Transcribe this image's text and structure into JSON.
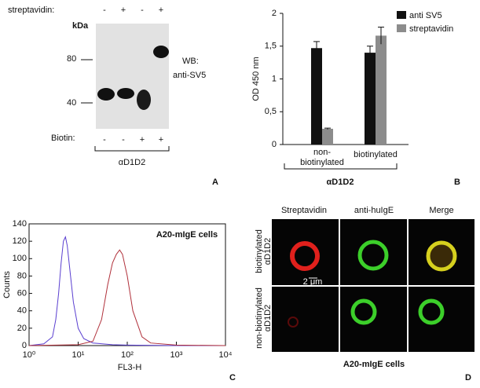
{
  "chart_data": [
    {
      "type": "bar",
      "panel_label": "B",
      "y_label": "OD 450 nm",
      "x_label": "αD1D2",
      "categories": [
        "non-biotinylated",
        "biotinylated"
      ],
      "series": [
        {
          "name": "anti SV5",
          "color": "#111111",
          "values": [
            1.47,
            1.4
          ],
          "errors": [
            0.1,
            0.1
          ]
        },
        {
          "name": "streptavidin",
          "color": "#8c8c8c",
          "values": [
            0.24,
            1.66
          ],
          "errors": [
            0.01,
            0.13
          ]
        }
      ],
      "ylim": [
        0,
        2
      ],
      "yticks": [
        0,
        {
          "value": 0.5,
          "label": "0,5"
        },
        1,
        {
          "value": 1.5,
          "label": "1,5"
        },
        2
      ]
    },
    {
      "type": "line",
      "panel_label": "C",
      "y_label": "Counts",
      "x_label": "FL3-H",
      "annotation": "A20-mIgE cells",
      "xlog": true,
      "xlim": [
        1,
        10000
      ],
      "ylim": [
        0,
        140
      ],
      "xticks": [
        {
          "value": 1,
          "label": "10⁰"
        },
        {
          "value": 10,
          "label": "10¹"
        },
        {
          "value": 100,
          "label": "10²"
        },
        {
          "value": 1000,
          "label": "10³"
        },
        {
          "value": 10000,
          "label": "10⁴"
        }
      ],
      "yticks": [
        0,
        20,
        40,
        60,
        80,
        100,
        120,
        140
      ],
      "series": [
        {
          "color": "#5a3fd0",
          "x": [
            1,
            2,
            3,
            3.5,
            4,
            4.5,
            5,
            5.5,
            6,
            7,
            8,
            10,
            13,
            20,
            50,
            100,
            1000,
            10000
          ],
          "values": [
            0,
            2,
            10,
            30,
            60,
            95,
            120,
            125,
            115,
            80,
            50,
            20,
            8,
            3,
            1,
            0.5,
            0,
            0
          ]
        },
        {
          "color": "#b0303a",
          "x": [
            1,
            10,
            20,
            30,
            40,
            50,
            60,
            70,
            80,
            100,
            130,
            200,
            300,
            1000,
            10000
          ],
          "values": [
            0,
            1,
            5,
            30,
            70,
            95,
            105,
            110,
            105,
            80,
            40,
            10,
            3,
            0.5,
            0
          ]
        }
      ]
    }
  ],
  "blot": {
    "panel_label": "A",
    "streptavidin_label": "streptavidin:",
    "streptavidin_signs": [
      "-",
      "+",
      "-",
      "+"
    ],
    "biotin_label": "Biotin:",
    "biotin_signs": [
      "-",
      "-",
      "+",
      "+"
    ],
    "kda_label": "kDa",
    "markers": [
      "80",
      "40"
    ],
    "wb_label": [
      "WB:",
      "anti-SV5"
    ],
    "construct": "αD1D2"
  },
  "microscopy": {
    "panel_label": "D",
    "columns": [
      "Streptavidin",
      "anti-huIgE",
      "Merge"
    ],
    "rows": [
      [
        "biotinylated",
        "αD1D2"
      ],
      [
        "non-biotinylated",
        "αD1D2"
      ]
    ],
    "scale_bar": "2 μm",
    "caption": "A20-mIgE cells"
  }
}
